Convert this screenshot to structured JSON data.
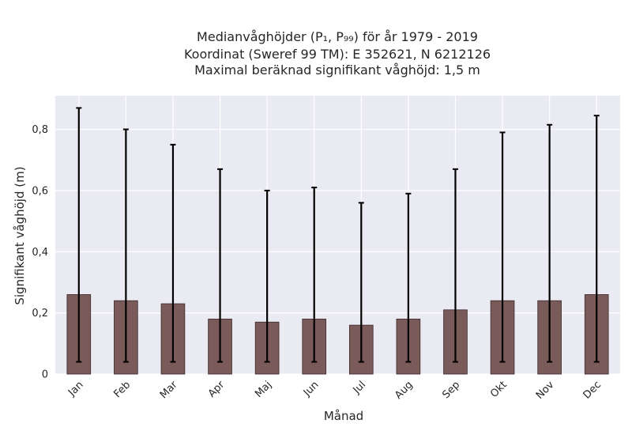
{
  "chart_data": {
    "type": "bar",
    "title_lines": [
      "Medianvåghöjder (P₁, P₉₉) för år 1979 - 2019",
      "Koordinat (Sweref 99 TM): E 352621, N 6212126",
      "Maximal beräknad signifikant våghöjd: 1,5 m"
    ],
    "xlabel": "Månad",
    "ylabel": "Signifikant våghöjd (m)",
    "categories": [
      "Jan",
      "Feb",
      "Mar",
      "Apr",
      "Maj",
      "Jun",
      "Jul",
      "Aug",
      "Sep",
      "Okt",
      "Nov",
      "Dec"
    ],
    "values": [
      0.26,
      0.24,
      0.23,
      0.18,
      0.17,
      0.18,
      0.16,
      0.18,
      0.21,
      0.24,
      0.24,
      0.26
    ],
    "err_low": [
      0.04,
      0.04,
      0.04,
      0.04,
      0.04,
      0.04,
      0.04,
      0.04,
      0.04,
      0.04,
      0.04,
      0.04
    ],
    "err_high": [
      0.87,
      0.8,
      0.75,
      0.67,
      0.6,
      0.61,
      0.56,
      0.59,
      0.67,
      0.79,
      0.815,
      0.845
    ],
    "ylim": [
      0,
      0.91
    ],
    "yticks": [
      0,
      0.2,
      0.4,
      0.6,
      0.8
    ],
    "ytick_labels": [
      "0",
      "0,2",
      "0,4",
      "0,6",
      "0,8"
    ],
    "grid": true,
    "colors": {
      "bar_fill": "#7b5a5a",
      "bar_edge": "#3a2a2a",
      "plot_bg": "#eaeaf2",
      "grid": "#ffffff",
      "errorbar": "#000000"
    }
  }
}
